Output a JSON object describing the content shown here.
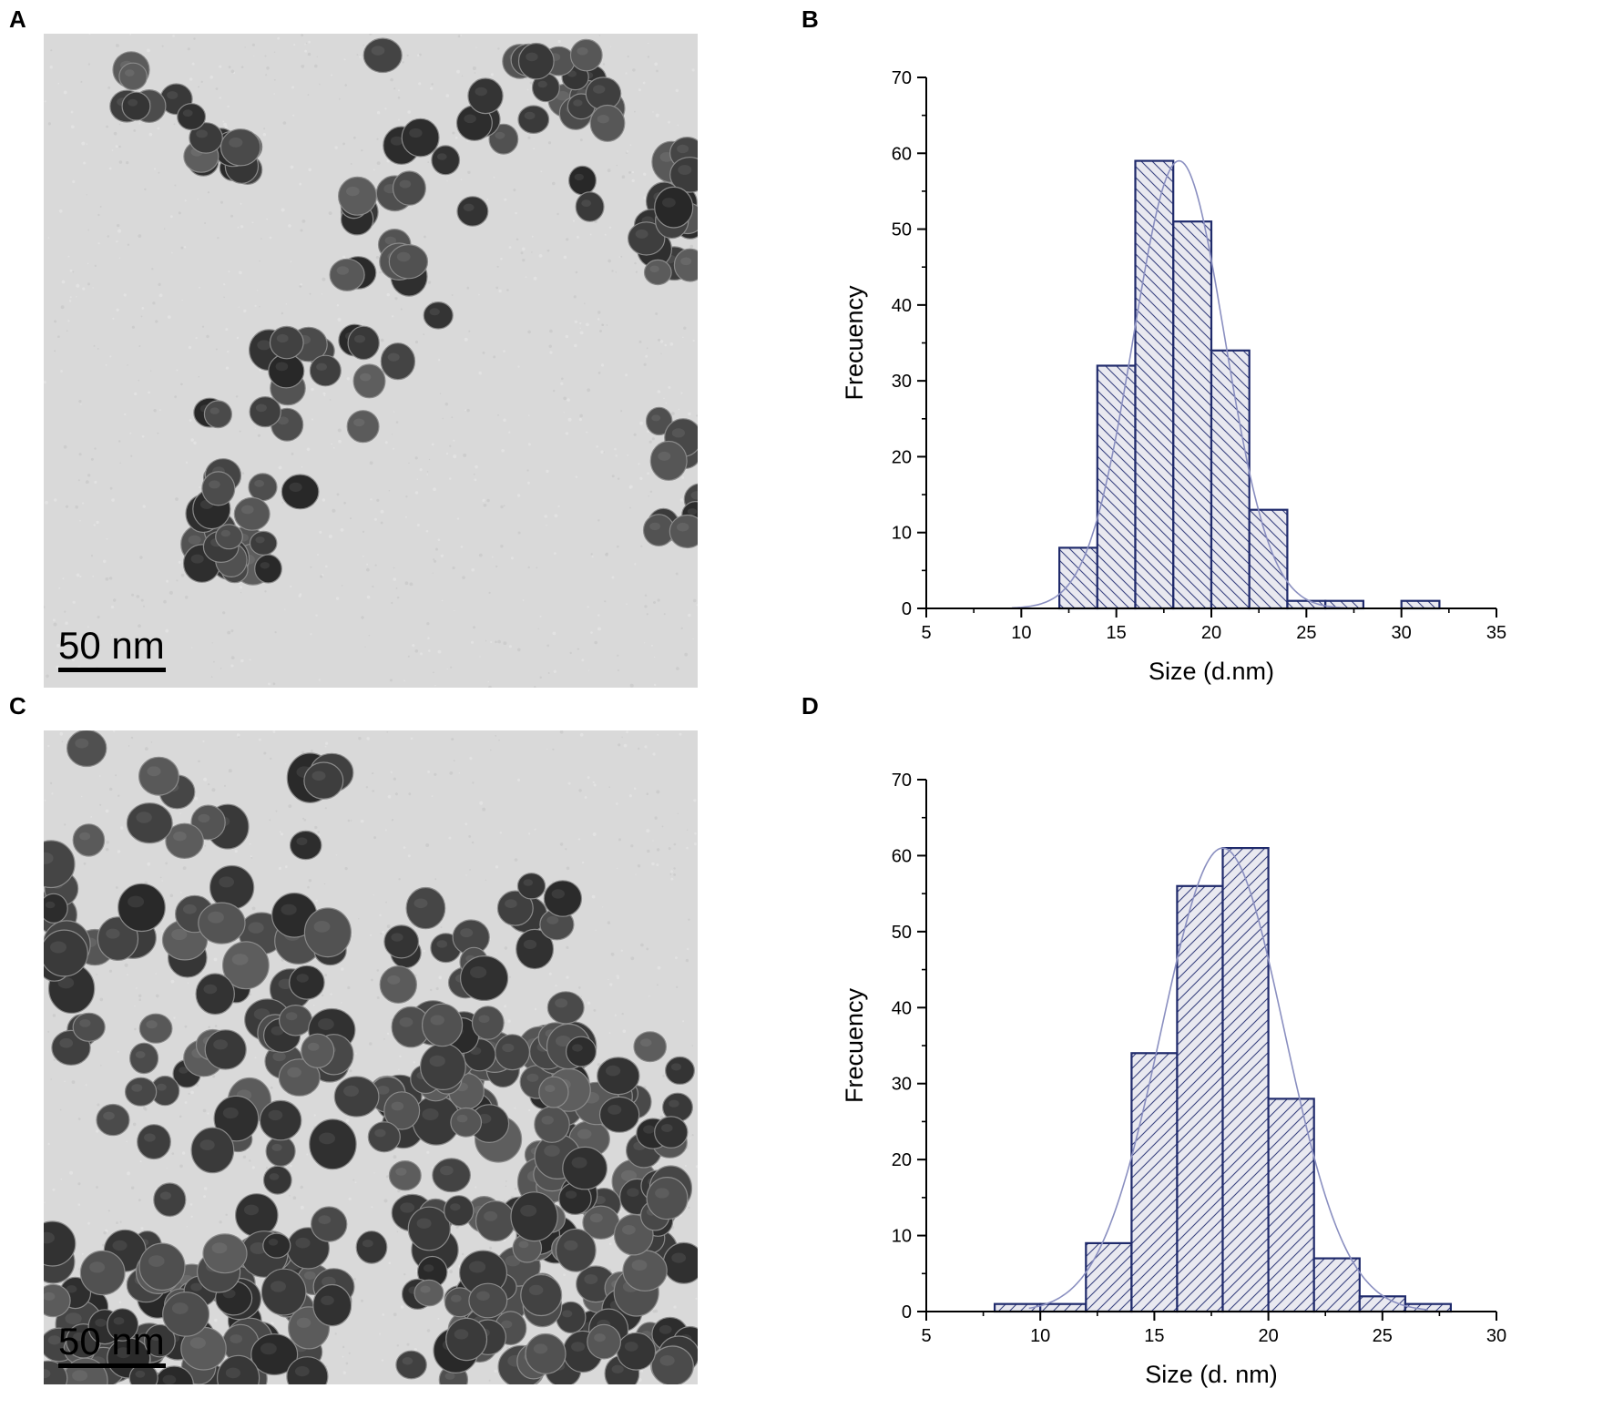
{
  "panels": {
    "A": {
      "letter": "A",
      "scale_label": "50 nm"
    },
    "B": {
      "letter": "B"
    },
    "C": {
      "letter": "C",
      "scale_label": "50 nm"
    },
    "D": {
      "letter": "D"
    }
  },
  "colors": {
    "bar_stroke": "#1f2a6b",
    "hatch": "#3a4380",
    "bar_fill": "#e9e9f0",
    "fit_curve": "#8a8fc0",
    "axis": "#000000",
    "tem_background": "#d9d9d9",
    "particle": "#3a3a3a"
  },
  "chart_data": [
    {
      "id": "B",
      "type": "bar",
      "xlabel": "Size (d.nm)",
      "ylabel": "Frecuency",
      "xlim": [
        5,
        35
      ],
      "ylim": [
        0,
        70
      ],
      "xticks": [
        5,
        10,
        15,
        20,
        25,
        30,
        35
      ],
      "yticks": [
        0,
        10,
        20,
        30,
        40,
        50,
        60,
        70
      ],
      "bin_width": 2,
      "bins": [
        {
          "start": 12,
          "value": 8
        },
        {
          "start": 14,
          "value": 32
        },
        {
          "start": 16,
          "value": 59
        },
        {
          "start": 18,
          "value": 51
        },
        {
          "start": 20,
          "value": 34
        },
        {
          "start": 22,
          "value": 13
        },
        {
          "start": 24,
          "value": 1
        },
        {
          "start": 26,
          "value": 1
        },
        {
          "start": 30,
          "value": 1
        }
      ],
      "hatch": "back-diagonal",
      "fit": {
        "type": "gaussian",
        "mean": 18.3,
        "sd": 2.4,
        "peak": 59,
        "range": [
          9.5,
          27
        ]
      }
    },
    {
      "id": "D",
      "type": "bar",
      "xlabel": "Size (d. nm)",
      "ylabel": "Frecuency",
      "xlim": [
        5,
        30
      ],
      "ylim": [
        0,
        70
      ],
      "xticks": [
        5,
        10,
        15,
        20,
        25,
        30
      ],
      "yticks": [
        0,
        10,
        20,
        30,
        40,
        50,
        60,
        70
      ],
      "bin_width": 2,
      "bins": [
        {
          "start": 8,
          "value": 1
        },
        {
          "start": 10,
          "value": 1
        },
        {
          "start": 12,
          "value": 9
        },
        {
          "start": 14,
          "value": 34
        },
        {
          "start": 16,
          "value": 56
        },
        {
          "start": 18,
          "value": 61
        },
        {
          "start": 20,
          "value": 28
        },
        {
          "start": 22,
          "value": 7
        },
        {
          "start": 24,
          "value": 2
        },
        {
          "start": 26,
          "value": 1
        }
      ],
      "hatch": "forward-diagonal",
      "fit": {
        "type": "gaussian",
        "mean": 18.0,
        "sd": 2.7,
        "peak": 61,
        "range": [
          9.5,
          27
        ]
      }
    }
  ]
}
